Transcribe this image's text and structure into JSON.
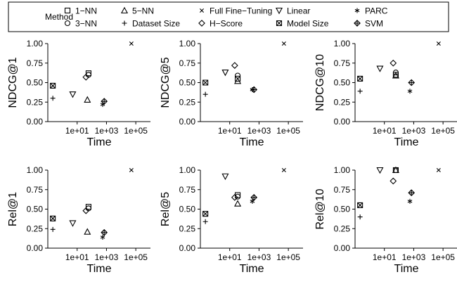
{
  "legend": {
    "title": "Method",
    "entries": [
      {
        "label": "1−NN",
        "marker": "square"
      },
      {
        "label": "3−NN",
        "marker": "circle"
      },
      {
        "label": "5−NN",
        "marker": "triangle"
      },
      {
        "label": "Dataset Size",
        "marker": "plus"
      },
      {
        "label": "Full Fine−Tuning",
        "marker": "cross"
      },
      {
        "label": "H−Score",
        "marker": "diamond"
      },
      {
        "label": "Linear",
        "marker": "triangle-down"
      },
      {
        "label": "Model Size",
        "marker": "boxed-x"
      },
      {
        "label": "PARC",
        "marker": "asterisk"
      },
      {
        "label": "SVM",
        "marker": "diamond-plus"
      }
    ]
  },
  "chart_data": [
    {
      "type": "scatter",
      "ylabel": "NDCG@1",
      "xlabel": "Time",
      "log_x": true,
      "xlim": [
        0.1,
        1000000.0
      ],
      "ylim": [
        0,
        1
      ],
      "xticks": [
        "1e+01",
        "1e+03",
        "1e+05"
      ],
      "yticks": [
        "0.00",
        "0.25",
        "0.50",
        "0.75",
        "1.00"
      ],
      "points": [
        {
          "method": "Model Size",
          "x": 0.22,
          "y": 0.46
        },
        {
          "method": "Dataset Size",
          "x": 0.22,
          "y": 0.3
        },
        {
          "method": "Linear",
          "x": 5,
          "y": 0.35
        },
        {
          "method": "5−NN",
          "x": 50,
          "y": 0.28
        },
        {
          "method": "H−Score",
          "x": 40,
          "y": 0.57
        },
        {
          "method": "3−NN",
          "x": 60,
          "y": 0.6
        },
        {
          "method": "1−NN",
          "x": 60,
          "y": 0.62
        },
        {
          "method": "SVM",
          "x": 700,
          "y": 0.26
        },
        {
          "method": "PARC",
          "x": 550,
          "y": 0.22
        },
        {
          "method": "Full Fine−Tuning",
          "x": 50000,
          "y": 1.0
        }
      ]
    },
    {
      "type": "scatter",
      "ylabel": "NDCG@5",
      "xlabel": "Time",
      "log_x": true,
      "xlim": [
        0.1,
        1000000.0
      ],
      "ylim": [
        0,
        1
      ],
      "xticks": [
        "1e+01",
        "1e+03",
        "1e+05"
      ],
      "yticks": [
        "0.00",
        "0.25",
        "0.50",
        "0.75",
        "1.00"
      ],
      "points": [
        {
          "method": "Model Size",
          "x": 0.22,
          "y": 0.5
        },
        {
          "method": "Dataset Size",
          "x": 0.22,
          "y": 0.35
        },
        {
          "method": "Linear",
          "x": 5,
          "y": 0.63
        },
        {
          "method": "H−Score",
          "x": 22,
          "y": 0.72
        },
        {
          "method": "3−NN",
          "x": 35,
          "y": 0.59
        },
        {
          "method": "1−NN",
          "x": 35,
          "y": 0.55
        },
        {
          "method": "5−NN",
          "x": 35,
          "y": 0.52
        },
        {
          "method": "SVM",
          "x": 450,
          "y": 0.41
        },
        {
          "method": "PARC",
          "x": 350,
          "y": 0.41
        },
        {
          "method": "Full Fine−Tuning",
          "x": 50000,
          "y": 1.0
        }
      ]
    },
    {
      "type": "scatter",
      "ylabel": "NDCG@10",
      "xlabel": "Time",
      "log_x": true,
      "xlim": [
        0.1,
        1000000.0
      ],
      "ylim": [
        0,
        1
      ],
      "xticks": [
        "1e+01",
        "1e+03",
        "1e+05"
      ],
      "yticks": [
        "0.00",
        "0.25",
        "0.50",
        "0.75",
        "1.00"
      ],
      "points": [
        {
          "method": "Model Size",
          "x": 0.22,
          "y": 0.55
        },
        {
          "method": "Dataset Size",
          "x": 0.22,
          "y": 0.39
        },
        {
          "method": "Linear",
          "x": 5,
          "y": 0.68
        },
        {
          "method": "H−Score",
          "x": 40,
          "y": 0.75
        },
        {
          "method": "3−NN",
          "x": 60,
          "y": 0.63
        },
        {
          "method": "1−NN",
          "x": 60,
          "y": 0.6
        },
        {
          "method": "5−NN",
          "x": 60,
          "y": 0.59
        },
        {
          "method": "SVM",
          "x": 700,
          "y": 0.5
        },
        {
          "method": "PARC",
          "x": 550,
          "y": 0.39
        },
        {
          "method": "Full Fine−Tuning",
          "x": 50000,
          "y": 1.0
        }
      ]
    },
    {
      "type": "scatter",
      "ylabel": "Rel@1",
      "xlabel": "Time",
      "log_x": true,
      "xlim": [
        0.1,
        1000000.0
      ],
      "ylim": [
        0,
        1
      ],
      "xticks": [
        "1e+01",
        "1e+03",
        "1e+05"
      ],
      "yticks": [
        "0.00",
        "0.25",
        "0.50",
        "0.75",
        "1.00"
      ],
      "points": [
        {
          "method": "Model Size",
          "x": 0.22,
          "y": 0.38
        },
        {
          "method": "Dataset Size",
          "x": 0.22,
          "y": 0.24
        },
        {
          "method": "Linear",
          "x": 5,
          "y": 0.32
        },
        {
          "method": "5−NN",
          "x": 50,
          "y": 0.21
        },
        {
          "method": "H−Score",
          "x": 40,
          "y": 0.48
        },
        {
          "method": "3−NN",
          "x": 60,
          "y": 0.51
        },
        {
          "method": "1−NN",
          "x": 60,
          "y": 0.53
        },
        {
          "method": "SVM",
          "x": 700,
          "y": 0.2
        },
        {
          "method": "PARC",
          "x": 550,
          "y": 0.14
        },
        {
          "method": "Full Fine−Tuning",
          "x": 50000,
          "y": 1.0
        }
      ]
    },
    {
      "type": "scatter",
      "ylabel": "Rel@5",
      "xlabel": "Time",
      "log_x": true,
      "xlim": [
        0.1,
        1000000.0
      ],
      "ylim": [
        0,
        1
      ],
      "xticks": [
        "1e+01",
        "1e+03",
        "1e+05"
      ],
      "yticks": [
        "0.00",
        "0.25",
        "0.50",
        "0.75",
        "1.00"
      ],
      "points": [
        {
          "method": "Model Size",
          "x": 0.22,
          "y": 0.44
        },
        {
          "method": "Dataset Size",
          "x": 0.22,
          "y": 0.34
        },
        {
          "method": "Linear",
          "x": 5,
          "y": 0.92
        },
        {
          "method": "H−Score",
          "x": 22,
          "y": 0.65
        },
        {
          "method": "3−NN",
          "x": 35,
          "y": 0.66
        },
        {
          "method": "1−NN",
          "x": 35,
          "y": 0.68
        },
        {
          "method": "5−NN",
          "x": 35,
          "y": 0.57
        },
        {
          "method": "SVM",
          "x": 450,
          "y": 0.65
        },
        {
          "method": "PARC",
          "x": 350,
          "y": 0.6
        },
        {
          "method": "Full Fine−Tuning",
          "x": 50000,
          "y": 1.0
        }
      ]
    },
    {
      "type": "scatter",
      "ylabel": "Rel@10",
      "xlabel": "Time",
      "log_x": true,
      "xlim": [
        0.1,
        1000000.0
      ],
      "ylim": [
        0,
        1
      ],
      "xticks": [
        "1e+01",
        "1e+03",
        "1e+05"
      ],
      "yticks": [
        "0.00",
        "0.25",
        "0.50",
        "0.75",
        "1.00"
      ],
      "points": [
        {
          "method": "Model Size",
          "x": 0.22,
          "y": 0.55
        },
        {
          "method": "Dataset Size",
          "x": 0.22,
          "y": 0.4
        },
        {
          "method": "Linear",
          "x": 5,
          "y": 1.0
        },
        {
          "method": "H−Score",
          "x": 40,
          "y": 0.86
        },
        {
          "method": "3−NN",
          "x": 60,
          "y": 1.0
        },
        {
          "method": "1−NN",
          "x": 60,
          "y": 1.0
        },
        {
          "method": "5−NN",
          "x": 60,
          "y": 1.0
        },
        {
          "method": "SVM",
          "x": 700,
          "y": 0.71
        },
        {
          "method": "PARC",
          "x": 550,
          "y": 0.6
        },
        {
          "method": "Full Fine−Tuning",
          "x": 50000,
          "y": 1.0
        }
      ]
    }
  ]
}
